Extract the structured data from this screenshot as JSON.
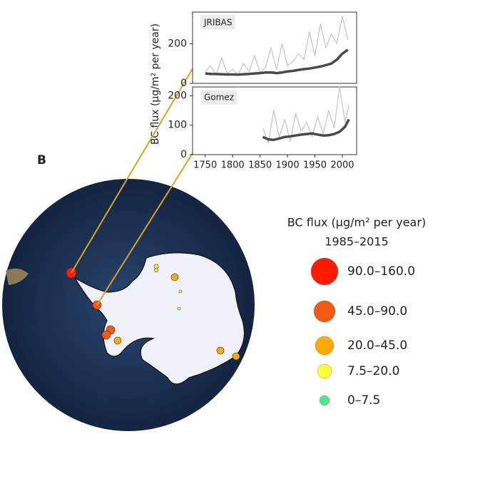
{
  "panel_label": "B",
  "y_axis_label": "BC flux (μg/m² per year)",
  "chart_data": [
    {
      "type": "line",
      "label": "JRIBAS",
      "x": [
        1750,
        1760,
        1770,
        1780,
        1790,
        1800,
        1810,
        1820,
        1830,
        1840,
        1850,
        1860,
        1870,
        1880,
        1890,
        1900,
        1910,
        1920,
        1930,
        1940,
        1950,
        1960,
        1970,
        1980,
        1990,
        2000,
        2010
      ],
      "series": [
        {
          "color": "#c4c4c4",
          "values": [
            60,
            90,
            40,
            130,
            50,
            70,
            45,
            100,
            60,
            140,
            55,
            80,
            180,
            70,
            200,
            90,
            110,
            150,
            120,
            260,
            140,
            300,
            180,
            250,
            200,
            340,
            220
          ]
        },
        {
          "color": "#4a4a4a",
          "values": [
            50,
            48,
            47,
            46,
            45,
            45,
            44,
            46,
            48,
            50,
            52,
            55,
            55,
            52,
            55,
            60,
            63,
            68,
            72,
            75,
            80,
            85,
            92,
            100,
            120,
            150,
            170
          ]
        }
      ],
      "xlim": [
        1727,
        2026
      ],
      "ylim": [
        0,
        360
      ],
      "yticks": [
        0,
        200
      ]
    },
    {
      "type": "line",
      "label": "Gomez",
      "x": [
        1855,
        1865,
        1875,
        1885,
        1895,
        1905,
        1915,
        1925,
        1935,
        1945,
        1955,
        1965,
        1975,
        1985,
        1995,
        2005,
        2012
      ],
      "series": [
        {
          "color": "#c4c4c4",
          "values": [
            90,
            40,
            150,
            60,
            120,
            45,
            140,
            80,
            110,
            60,
            130,
            70,
            150,
            90,
            230,
            110,
            170
          ]
        },
        {
          "color": "#4a4a4a",
          "values": [
            60,
            52,
            50,
            55,
            60,
            62,
            65,
            68,
            70,
            72,
            68,
            65,
            66,
            70,
            78,
            95,
            120
          ]
        }
      ],
      "xlim": [
        1727,
        2026
      ],
      "ylim": [
        0,
        230
      ],
      "yticks": [
        0,
        100,
        200
      ],
      "xticks": [
        1750,
        1800,
        1850,
        1900,
        1950,
        2000
      ]
    }
  ],
  "legend": {
    "title": "BC flux (μg/m² per year)",
    "period": "1985–2015",
    "entries": [
      {
        "label": "90.0–160.0",
        "color": "#ff1a00"
      },
      {
        "label": "45.0–90.0",
        "color": "#f25a14"
      },
      {
        "label": "20.0–45.0",
        "color": "#ffaa00"
      },
      {
        "label": "7.5–20.0",
        "color": "#ffff33"
      },
      {
        "label": "0–7.5",
        "color": "#4de88a"
      }
    ]
  }
}
